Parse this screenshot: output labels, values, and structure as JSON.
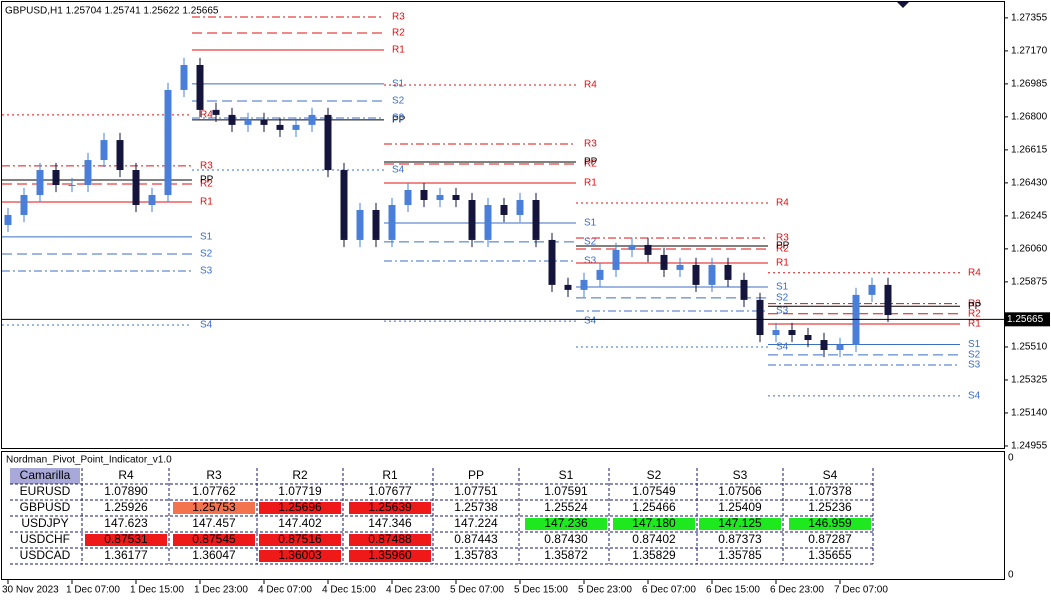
{
  "chart_data": {
    "type": "candlestick",
    "title": "GBPUSD,H1  1.25704 1.25741 1.25622 1.25665",
    "ylim": [
      1.24938,
      1.27444
    ],
    "yticks": [
      1.27355,
      {
        "value": 1.2717,
        "label": "1.27170"
      },
      1.26985,
      {
        "value": 1.268,
        "label": "1.26800"
      },
      1.26615,
      {
        "value": 1.2643,
        "label": "1.26430"
      },
      1.26245,
      {
        "value": 1.2606,
        "label": "1.26060"
      },
      1.25875,
      {
        "value": 1.2551,
        "label": "1.25510"
      },
      1.25325,
      {
        "value": 1.2514,
        "label": "1.25140"
      },
      1.24955
    ],
    "x_labels": [
      "30 Nov 2023",
      "1 Dec 07:00",
      "1 Dec 15:00",
      "1 Dec 23:00",
      "4 Dec 07:00",
      "4 Dec 15:00",
      "4 Dec 23:00",
      "5 Dec 07:00",
      "5 Dec 15:00",
      "5 Dec 23:00",
      "6 Dec 07:00",
      "6 Dec 15:00",
      "6 Dec 23:00",
      "7 Dec 07:00"
    ],
    "current_price": 1.25665,
    "up_color": "#4a7fd8",
    "down_color": "#14143c",
    "resistance_color": "#e01010",
    "pivot_color": "#000000",
    "support_color": "#3b6fc4",
    "open": [
      1.26194,
      1.2625,
      1.26362,
      1.26502,
      1.26418,
      1.26418,
      1.26558,
      1.2667,
      1.26502,
      1.26306,
      1.26362,
      1.26951,
      1.27091,
      1.26839,
      1.26811,
      1.26755,
      1.26783,
      1.26755,
      1.26727,
      1.26755,
      1.26811,
      1.26502,
      1.2611,
      1.26278,
      1.2611,
      1.26306,
      1.2639,
      1.26334,
      1.26362,
      1.26334,
      1.2611,
      1.26306,
      1.2625,
      1.26334,
      1.2611,
      1.25858,
      1.2583,
      1.25886,
      1.25942,
      1.26054,
      1.26082,
      1.26026,
      1.25942,
      1.2597,
      1.25858,
      1.2597,
      1.25886,
      1.25774,
      1.25577,
      1.25605,
      1.25577,
      1.25549,
      1.25493,
      1.25521,
      1.25802,
      1.25858
    ],
    "high": [
      1.2629,
      1.26402,
      1.26542,
      1.26542,
      1.26458,
      1.26598,
      1.2671,
      1.2671,
      1.26542,
      1.26402,
      1.26991,
      1.27131,
      1.27131,
      1.26879,
      1.26851,
      1.26823,
      1.26823,
      1.26795,
      1.26795,
      1.26851,
      1.26851,
      1.26542,
      1.26318,
      1.26318,
      1.26346,
      1.2643,
      1.2643,
      1.26402,
      1.26402,
      1.26374,
      1.26346,
      1.26346,
      1.26374,
      1.26374,
      1.2615,
      1.25898,
      1.25926,
      1.25982,
      1.26094,
      1.26122,
      1.26122,
      1.26066,
      1.2601,
      1.2601,
      1.2601,
      1.2601,
      1.25926,
      1.25814,
      1.25645,
      1.25645,
      1.25617,
      1.25589,
      1.25561,
      1.25842,
      1.25898,
      1.25898
    ],
    "low": [
      1.26154,
      1.2621,
      1.26322,
      1.26378,
      1.26378,
      1.26378,
      1.26518,
      1.26462,
      1.26266,
      1.26266,
      1.26322,
      1.26911,
      1.26799,
      1.26771,
      1.26715,
      1.26715,
      1.26715,
      1.26687,
      1.26687,
      1.26715,
      1.26462,
      1.2607,
      1.2607,
      1.2607,
      1.2607,
      1.26266,
      1.26294,
      1.26294,
      1.26294,
      1.2607,
      1.2607,
      1.2621,
      1.2621,
      1.2607,
      1.25818,
      1.2579,
      1.2579,
      1.25846,
      1.25902,
      1.26014,
      1.25986,
      1.25902,
      1.25902,
      1.25818,
      1.25818,
      1.25846,
      1.25734,
      1.25537,
      1.25537,
      1.25537,
      1.25509,
      1.25453,
      1.25453,
      1.25481,
      1.25762,
      1.25649
    ],
    "close": [
      1.2625,
      1.26362,
      1.26502,
      1.26418,
      1.26418,
      1.26558,
      1.2667,
      1.26502,
      1.26306,
      1.26362,
      1.26951,
      1.27091,
      1.26839,
      1.26811,
      1.26755,
      1.26783,
      1.26755,
      1.26727,
      1.26755,
      1.26811,
      1.26502,
      1.2611,
      1.26278,
      1.2611,
      1.26306,
      1.2639,
      1.26334,
      1.26362,
      1.26334,
      1.2611,
      1.26306,
      1.2625,
      1.26334,
      1.2611,
      1.25858,
      1.2583,
      1.25886,
      1.25942,
      1.26054,
      1.26082,
      1.26026,
      1.25942,
      1.2597,
      1.25858,
      1.2597,
      1.25886,
      1.25774,
      1.25577,
      1.25605,
      1.25577,
      1.25549,
      1.25493,
      1.25521,
      1.25802,
      1.25858,
      1.25689
    ],
    "levels": [
      "R4",
      "R3",
      "R2",
      "R1",
      "PP",
      "S1",
      "S2",
      "S3",
      "S4"
    ],
    "pivot_days": [
      {
        "from": 0,
        "values": [
          1.26811,
          1.26525,
          1.26424,
          1.26323,
          1.26446,
          1.26127,
          1.26031,
          1.25936,
          1.25633
        ]
      },
      {
        "from": 12,
        "values": [
          null,
          1.2736,
          1.2727,
          1.27175,
          1.26783,
          1.26985,
          1.26889,
          1.26794,
          1.26502
        ]
      },
      {
        "from": 24,
        "values": [
          1.26979,
          1.26648,
          1.26536,
          1.26429,
          1.26547,
          1.26205,
          1.26099,
          1.25992,
          1.25655
        ]
      },
      {
        "from": 36,
        "values": [
          1.26317,
          1.26121,
          1.26059,
          1.25981,
          1.26076,
          1.25846,
          1.25785,
          1.25712,
          1.2551
        ]
      },
      {
        "from": 48,
        "values": [
          1.25926,
          1.25753,
          1.25696,
          1.25639,
          1.25738,
          1.25524,
          1.25466,
          1.25409,
          1.25236
        ]
      }
    ]
  },
  "indicator": {
    "title": "Nordman_Pivot_Point_Indicator_v1.0",
    "scale_labels": [
      "0",
      "0"
    ],
    "table": {
      "columns": [
        "Camarilla",
        "R4",
        "R3",
        "R2",
        "R1",
        "PP",
        "S1",
        "S2",
        "S3",
        "S4"
      ],
      "rows": [
        {
          "symbol": "EURUSD",
          "cells": [
            "1.07890",
            "1.07762",
            "1.07719",
            "1.07677",
            "1.07751",
            "1.07591",
            "1.07549",
            "1.07506",
            "1.07378"
          ],
          "fills": [
            null,
            null,
            null,
            null,
            null,
            null,
            null,
            null,
            null
          ]
        },
        {
          "symbol": "GBPUSD",
          "cells": [
            "1.25926",
            "1.25753",
            "1.25696",
            "1.25639",
            "1.25738",
            "1.25524",
            "1.25466",
            "1.25409",
            "1.25236"
          ],
          "fills": [
            null,
            "#f4734f",
            "#ee1a1a",
            "#ee1a1a",
            null,
            null,
            null,
            null,
            null
          ]
        },
        {
          "symbol": "USDJPY",
          "cells": [
            "147.623",
            "147.457",
            "147.402",
            "147.346",
            "147.224",
            "147.236",
            "147.180",
            "147.125",
            "146.959"
          ],
          "fills": [
            null,
            null,
            null,
            null,
            null,
            "#1ee81e",
            "#1ee81e",
            "#1ee81e",
            "#1ee81e"
          ]
        },
        {
          "symbol": "USDCHF",
          "cells": [
            "0.87531",
            "0.87545",
            "0.87516",
            "0.87488",
            "0.87443",
            "0.87430",
            "0.87402",
            "0.87373",
            "0.87287"
          ],
          "fills": [
            "#ee1a1a",
            "#ee1a1a",
            "#ee1a1a",
            "#ee1a1a",
            null,
            null,
            null,
            null,
            null
          ]
        },
        {
          "symbol": "USDCAD",
          "cells": [
            "1.36177",
            "1.36047",
            "1.36003",
            "1.35960",
            "1.35783",
            "1.35872",
            "1.35829",
            "1.35785",
            "1.35655"
          ],
          "fills": [
            null,
            null,
            "#ee1a1a",
            "#ee1a1a",
            null,
            null,
            null,
            null,
            null
          ]
        }
      ]
    }
  }
}
